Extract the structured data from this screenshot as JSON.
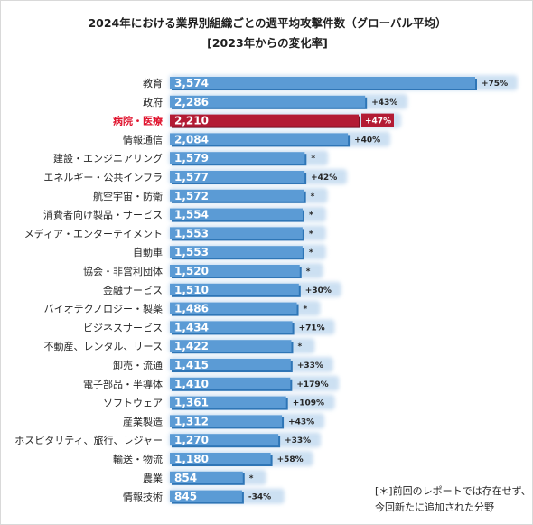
{
  "chart_data": {
    "type": "bar",
    "orientation": "horizontal",
    "title": "2024年における業界別組織ごとの週平均攻撃件数（グローバル平均）",
    "subtitle": "[2023年からの変化率]",
    "highlight_category": "病院・医療",
    "colors": {
      "bar": "#5b9bd5",
      "bar_dark": "#2e75b6",
      "highlight": "#b31b34",
      "highlight_dark": "#7a0f22",
      "label_highlight": "#e0142e"
    },
    "categories": [
      "教育",
      "政府",
      "病院・医療",
      "情報通信",
      "建設・エンジニアリング",
      "エネルギー・公共インフラ",
      "航空宇宙・防衛",
      "消費者向け製品・サービス",
      "メディア・エンターテイメント",
      "自動車",
      "協会・非営利団体",
      "金融サービス",
      "バイオテクノロジー・製薬",
      "ビジネスサービス",
      "不動産、レンタル、リース",
      "卸売・流通",
      "電子部品・半導体",
      "ソフトウェア",
      "産業製造",
      "ホスピタリティ、旅行、レジャー",
      "輸送・物流",
      "農業",
      "情報技術"
    ],
    "values": [
      3574,
      2286,
      2210,
      2084,
      1579,
      1577,
      1572,
      1554,
      1553,
      1553,
      1520,
      1510,
      1486,
      1434,
      1422,
      1415,
      1410,
      1361,
      1312,
      1270,
      1180,
      854,
      845
    ],
    "value_labels": [
      "3,574",
      "2,286",
      "2,210",
      "2,084",
      "1,579",
      "1,577",
      "1,572",
      "1,554",
      "1,553",
      "1,553",
      "1,520",
      "1,510",
      "1,486",
      "1,434",
      "1,422",
      "1,415",
      "1,410",
      "1,361",
      "1,312",
      "1,270",
      "1,180",
      "854",
      "845"
    ],
    "change_labels": [
      "+75%",
      "+43%",
      "+47%",
      "+40%",
      "*",
      "+42%",
      "*",
      "*",
      "*",
      "*",
      "*",
      "+30%",
      "*",
      "+71%",
      "*",
      "+33%",
      "+179%",
      "+109%",
      "+43%",
      "+33%",
      "+58%",
      "*",
      "-34%"
    ],
    "xlim": [
      0,
      3574
    ],
    "note": [
      "[＊]前回のレポートでは存在せず、",
      "今回新たに追加された分野"
    ]
  }
}
